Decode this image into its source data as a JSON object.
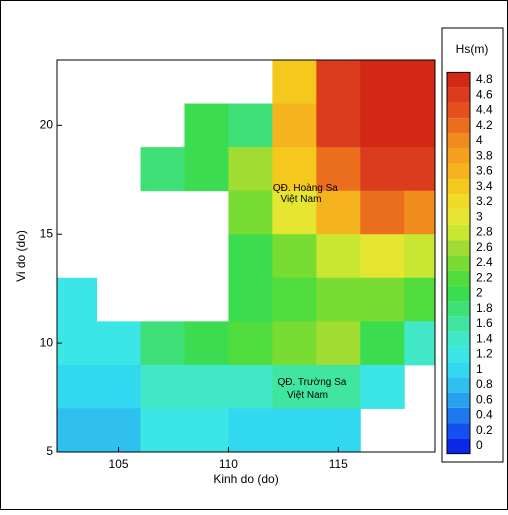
{
  "chart_data": {
    "type": "heatmap",
    "xlabel": "Kinh do (do)",
    "ylabel": "Vi do (do)",
    "xlim": [
      102.2,
      119.4
    ],
    "ylim": [
      5,
      23
    ],
    "xticks": [
      105,
      110,
      115
    ],
    "yticks": [
      5,
      10,
      15,
      20
    ],
    "lon": [
      103,
      105,
      107,
      109,
      111,
      113,
      115,
      117,
      119
    ],
    "lat": [
      22,
      20,
      18,
      16,
      14,
      12,
      10,
      8,
      6
    ],
    "hs": [
      [
        null,
        null,
        null,
        null,
        null,
        3.5,
        4.6,
        4.8,
        4.8
      ],
      [
        null,
        null,
        null,
        2.0,
        1.8,
        3.6,
        4.6,
        4.8,
        4.8
      ],
      [
        null,
        null,
        1.9,
        2.0,
        2.6,
        3.4,
        4.2,
        4.6,
        4.6
      ],
      [
        null,
        null,
        null,
        null,
        2.4,
        3.0,
        3.6,
        4.2,
        4.0
      ],
      [
        null,
        null,
        null,
        null,
        2.0,
        2.4,
        2.8,
        3.0,
        2.8
      ],
      [
        1.2,
        null,
        null,
        null,
        2.0,
        2.2,
        2.4,
        2.4,
        2.2
      ],
      [
        1.2,
        1.2,
        1.8,
        2.0,
        2.2,
        2.4,
        2.6,
        2.0,
        1.4
      ],
      [
        1.0,
        1.0,
        1.4,
        1.4,
        1.4,
        1.6,
        1.6,
        1.2,
        null
      ],
      [
        0.8,
        0.8,
        1.2,
        1.2,
        1.0,
        1.0,
        1.0,
        null,
        null
      ]
    ],
    "annotations": [
      {
        "text": "QĐ. Hoàng Sa",
        "lon": 113.5,
        "lat": 17.1
      },
      {
        "text": "Việt Nam",
        "lon": 113.3,
        "lat": 16.6
      },
      {
        "text": "QĐ. Trường Sa",
        "lon": 113.8,
        "lat": 8.2
      },
      {
        "text": "Việt Nam",
        "lon": 113.6,
        "lat": 7.6
      }
    ],
    "colorbar": {
      "title": "Hs(m)",
      "levels": [
        0,
        0.2,
        0.4,
        0.6,
        0.8,
        1,
        1.2,
        1.4,
        1.6,
        1.8,
        2,
        2.2,
        2.4,
        2.6,
        2.8,
        3,
        3.2,
        3.4,
        3.6,
        3.8,
        4,
        4.2,
        4.4,
        4.6,
        4.8
      ],
      "colors": [
        "#0a28e6",
        "#1450f0",
        "#1e78f0",
        "#28a0f0",
        "#30c0f0",
        "#32d8f0",
        "#3ce6e6",
        "#40e8c8",
        "#40e6a0",
        "#40e078",
        "#3cdc50",
        "#50dc3c",
        "#78dc32",
        "#a0dc32",
        "#c8e632",
        "#e6e632",
        "#f0dc28",
        "#f5c81e",
        "#f5b41e",
        "#f5a01e",
        "#f08c1e",
        "#eb6e1e",
        "#e6501e",
        "#dc3c1e",
        "#d22814"
      ]
    }
  }
}
